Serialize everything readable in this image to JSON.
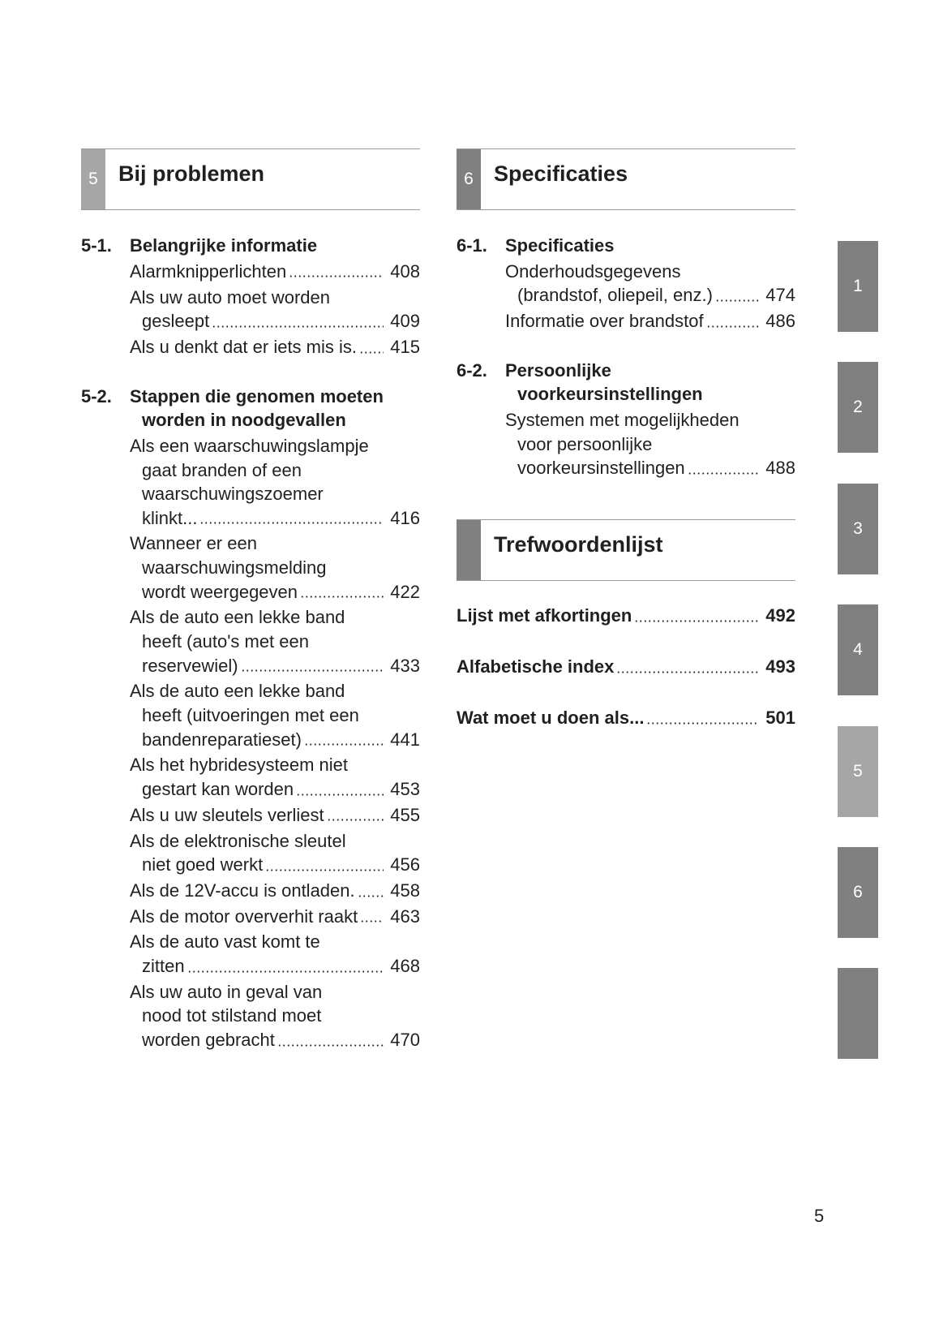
{
  "chapter5": {
    "number": "5",
    "title": "Bij problemen",
    "number_box_color": "#a6a6a6",
    "sections": [
      {
        "number": "5-1.",
        "title": [
          "Belangrijke informatie"
        ],
        "entries": [
          {
            "lines": [
              "Alarmknipperlichten"
            ],
            "page": "408"
          },
          {
            "lines": [
              "Als uw auto moet worden",
              "gesleept"
            ],
            "page": "409"
          },
          {
            "lines": [
              "Als u denkt dat er iets mis is."
            ],
            "page": "415"
          }
        ]
      },
      {
        "number": "5-2.",
        "title": [
          "Stappen die genomen moeten",
          "worden in noodgevallen"
        ],
        "entries": [
          {
            "lines": [
              "Als een waarschuwingslampje",
              "gaat branden of een",
              "waarschuwingszoemer",
              "klinkt..."
            ],
            "page": "416"
          },
          {
            "lines": [
              "Wanneer er een",
              "waarschuwingsmelding",
              "wordt weergegeven"
            ],
            "page": "422"
          },
          {
            "lines": [
              "Als de auto een lekke band",
              "heeft (auto's met een",
              "reservewiel)"
            ],
            "page": "433"
          },
          {
            "lines": [
              "Als de auto een lekke band",
              "heeft (uitvoeringen met een",
              "bandenreparatieset)"
            ],
            "page": "441"
          },
          {
            "lines": [
              "Als het hybridesysteem niet",
              "gestart kan worden"
            ],
            "page": "453"
          },
          {
            "lines": [
              "Als u uw sleutels verliest"
            ],
            "page": "455"
          },
          {
            "lines": [
              "Als de elektronische sleutel",
              "niet goed werkt"
            ],
            "page": "456"
          },
          {
            "lines": [
              "Als de 12V-accu is ontladen."
            ],
            "page": "458"
          },
          {
            "lines": [
              "Als de motor oververhit raakt"
            ],
            "page": "463"
          },
          {
            "lines": [
              "Als de auto vast komt te",
              "zitten"
            ],
            "page": "468"
          },
          {
            "lines": [
              "Als uw auto in geval van",
              "nood tot stilstand moet",
              "worden gebracht"
            ],
            "page": "470"
          }
        ]
      }
    ]
  },
  "chapter6": {
    "number": "6",
    "title": "Specificaties",
    "number_box_color": "#808080",
    "sections": [
      {
        "number": "6-1.",
        "title": [
          "Specificaties"
        ],
        "entries": [
          {
            "lines": [
              "Onderhoudsgegevens",
              "(brandstof, oliepeil, enz.)"
            ],
            "page": "474"
          },
          {
            "lines": [
              "Informatie over brandstof"
            ],
            "page": "486"
          }
        ]
      },
      {
        "number": "6-2.",
        "title": [
          "Persoonlijke",
          "voorkeursinstellingen"
        ],
        "entries": [
          {
            "lines": [
              "Systemen met mogelijkheden",
              "voor persoonlijke",
              "voorkeursinstellingen"
            ],
            "page": "488"
          }
        ]
      }
    ]
  },
  "index": {
    "title": "Trefwoordenlijst",
    "number_box_color": "#808080",
    "entries": [
      {
        "label": "Lijst met afkortingen",
        "page": "492"
      },
      {
        "label": "Alfabetische index",
        "page": "493"
      },
      {
        "label": "Wat moet u doen als...",
        "page": "501"
      }
    ]
  },
  "side_tabs": [
    {
      "label": "1",
      "color": "#808080"
    },
    {
      "label": "2",
      "color": "#808080"
    },
    {
      "label": "3",
      "color": "#808080"
    },
    {
      "label": "4",
      "color": "#808080"
    },
    {
      "label": "5",
      "color": "#a6a6a6"
    },
    {
      "label": "6",
      "color": "#808080"
    },
    {
      "label": "",
      "color": "#808080"
    }
  ],
  "page_number": "5"
}
